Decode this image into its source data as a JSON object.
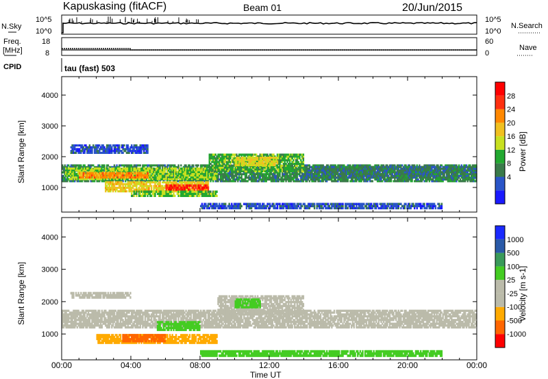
{
  "header": {
    "station": "Kapuskasing (fitACF)",
    "beam": "Beam 01",
    "date": "20/Jun/2015"
  },
  "nsky": {
    "left_label": "N.Sky",
    "left_ticks": [
      "10^5",
      "10^0"
    ],
    "right_label": "N.Search",
    "right_ticks": [
      "10^5",
      "10^0"
    ]
  },
  "freq": {
    "left_label_1": "Freq.",
    "left_label_2": "[MHz]",
    "left_ticks": [
      "18",
      "8"
    ],
    "right_label": "Nave",
    "right_ticks": [
      "60",
      "0"
    ]
  },
  "cpid": {
    "label": "CPID",
    "mode": "tau (fast) 503"
  },
  "colors": {
    "power": [
      "#1a1aff",
      "#2a55c8",
      "#3a7a4a",
      "#22a830",
      "#c8e020",
      "#f0c020",
      "#ff8800",
      "#ff3010",
      "#ff0000"
    ],
    "velocity": [
      "#ff0000",
      "#ff6600",
      "#ffaa00",
      "#bbbbaa",
      "#bbbbaa",
      "#44cc22",
      "#3a9a5a",
      "#2a5aa8",
      "#1a2aff"
    ]
  },
  "chart_data": [
    {
      "type": "heatmap",
      "title": "",
      "xlabel": "Time UT",
      "ylabel": "Slant Range [km]",
      "x_ticks": [
        "00:00",
        "04:00",
        "08:00",
        "12:00",
        "16:00",
        "20:00",
        "00:00"
      ],
      "xlim_hours": [
        0,
        24
      ],
      "ylim": [
        200,
        4600
      ],
      "y_ticks": [
        1000,
        2000,
        3000,
        4000
      ],
      "colorbar_label": "Power [dB]",
      "colorbar_ticks": [
        "4",
        "8",
        "12",
        "16",
        "20",
        "24",
        "28"
      ],
      "colorbar_range": [
        0,
        30
      ],
      "regions": [
        {
          "t": [
            0.0,
            24.0
          ],
          "r": [
            1180,
            1750
          ],
          "value": 9
        },
        {
          "t": [
            0.2,
            9.0
          ],
          "r": [
            1250,
            1650
          ],
          "value": 14
        },
        {
          "t": [
            1.0,
            5.0
          ],
          "r": [
            1300,
            1500
          ],
          "value": 22
        },
        {
          "t": [
            2.5,
            8.5
          ],
          "r": [
            850,
            1200
          ],
          "value": 18
        },
        {
          "t": [
            6.0,
            8.5
          ],
          "r": [
            900,
            1100
          ],
          "value": 26
        },
        {
          "t": [
            4.0,
            9.0
          ],
          "r": [
            700,
            900
          ],
          "value": 13
        },
        {
          "t": [
            8.5,
            14.0
          ],
          "r": [
            1500,
            2100
          ],
          "value": 12
        },
        {
          "t": [
            10.0,
            12.5
          ],
          "r": [
            1700,
            2000
          ],
          "value": 17
        },
        {
          "t": [
            14.0,
            24.0
          ],
          "r": [
            1300,
            1700
          ],
          "value": 8
        },
        {
          "t": [
            8.0,
            22.0
          ],
          "r": [
            300,
            500
          ],
          "value": 5
        },
        {
          "t": [
            0.5,
            5.0
          ],
          "r": [
            2100,
            2400
          ],
          "value": 5
        }
      ]
    },
    {
      "type": "heatmap",
      "title": "",
      "xlabel": "Time UT",
      "ylabel": "Slant Range [km]",
      "x_ticks": [
        "00:00",
        "04:00",
        "08:00",
        "12:00",
        "16:00",
        "20:00",
        "00:00"
      ],
      "xlim_hours": [
        0,
        24
      ],
      "ylim": [
        200,
        4600
      ],
      "y_ticks": [
        1000,
        2000,
        3000,
        4000
      ],
      "colorbar_label": "Velocity [m s-1]",
      "colorbar_ticks": [
        "1000",
        "500",
        "100",
        "25",
        "-25",
        "-100",
        "-500",
        "-1000"
      ],
      "regions": [
        {
          "t": [
            0.0,
            24.0
          ],
          "r": [
            1180,
            1750
          ],
          "value": 0
        },
        {
          "t": [
            2.0,
            9.0
          ],
          "r": [
            700,
            1000
          ],
          "value": -80
        },
        {
          "t": [
            3.5,
            6.0
          ],
          "r": [
            750,
            1000
          ],
          "value": -300
        },
        {
          "t": [
            5.5,
            8.0
          ],
          "r": [
            1100,
            1400
          ],
          "value": 60
        },
        {
          "t": [
            9.0,
            14.0
          ],
          "r": [
            1600,
            2200
          ],
          "value": 0
        },
        {
          "t": [
            10.0,
            11.5
          ],
          "r": [
            1800,
            2100
          ],
          "value": 60
        },
        {
          "t": [
            8.0,
            22.0
          ],
          "r": [
            300,
            500
          ],
          "value": 40
        },
        {
          "t": [
            0.5,
            4.0
          ],
          "r": [
            2100,
            2300
          ],
          "value": 0
        }
      ]
    }
  ]
}
